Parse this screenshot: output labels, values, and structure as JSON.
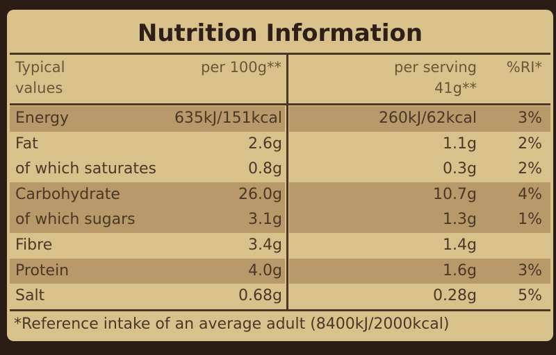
{
  "title": "Nutrition Information",
  "header": {
    "typical": "Typical values",
    "per100": "per 100g**",
    "serving": "per serving 41g**",
    "ri": "%RI*"
  },
  "rows": [
    {
      "name": "Energy",
      "per100": "635kJ/151kcal",
      "serving": "260kJ/62kcal",
      "ri": "3%"
    },
    {
      "name": "Fat",
      "per100": "2.6g",
      "serving": "1.1g",
      "ri": "2%"
    },
    {
      "name": "of which saturates",
      "per100": "0.8g",
      "serving": "0.3g",
      "ri": "2%"
    },
    {
      "name": "Carbohydrate",
      "per100": "26.0g",
      "serving": "10.7g",
      "ri": "4%"
    },
    {
      "name": "of which sugars",
      "per100": "3.1g",
      "serving": "1.3g",
      "ri": "1%"
    },
    {
      "name": "Fibre",
      "per100": "3.4g",
      "serving": "1.4g"
    },
    {
      "name": "Protein",
      "per100": "4.0g",
      "serving": "1.6g",
      "ri": "3%"
    },
    {
      "name": "Salt",
      "per100": "0.68g",
      "serving": "0.28g",
      "ri": "5%"
    }
  ],
  "footnote": "*Reference intake of an average adult (8400kJ/2000kcal)"
}
